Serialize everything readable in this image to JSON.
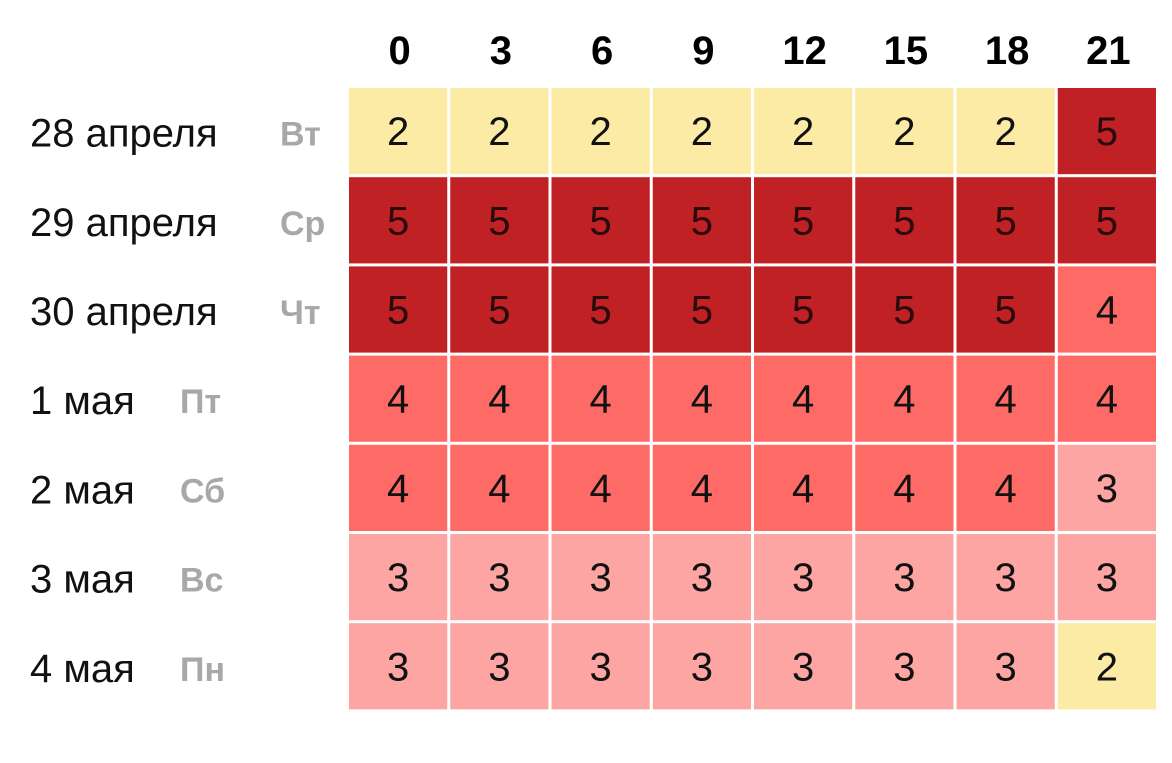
{
  "chart_data": {
    "type": "heatmap",
    "x": [
      "0",
      "3",
      "6",
      "9",
      "12",
      "15",
      "18",
      "21"
    ],
    "rows": [
      {
        "date": "28 апреля",
        "weekday": "Вт",
        "values": [
          2,
          2,
          2,
          2,
          2,
          2,
          2,
          5
        ]
      },
      {
        "date": "29 апреля",
        "weekday": "Ср",
        "values": [
          5,
          5,
          5,
          5,
          5,
          5,
          5,
          5
        ]
      },
      {
        "date": "30 апреля",
        "weekday": "Чт",
        "values": [
          5,
          5,
          5,
          5,
          5,
          5,
          5,
          4
        ]
      },
      {
        "date": "1 мая",
        "weekday": "Пт",
        "values": [
          4,
          4,
          4,
          4,
          4,
          4,
          4,
          4
        ]
      },
      {
        "date": "2 мая",
        "weekday": "Сб",
        "values": [
          4,
          4,
          4,
          4,
          4,
          4,
          4,
          3
        ]
      },
      {
        "date": "3 мая",
        "weekday": "Вс",
        "values": [
          3,
          3,
          3,
          3,
          3,
          3,
          3,
          3
        ]
      },
      {
        "date": "4 мая",
        "weekday": "Пн",
        "values": [
          3,
          3,
          3,
          3,
          3,
          3,
          3,
          2
        ]
      }
    ],
    "value_colors": {
      "2": "#fbeba4",
      "3": "#fca5a3",
      "4": "#fe6b67",
      "5": "#bf2125"
    },
    "grid": true,
    "legend": "none"
  }
}
